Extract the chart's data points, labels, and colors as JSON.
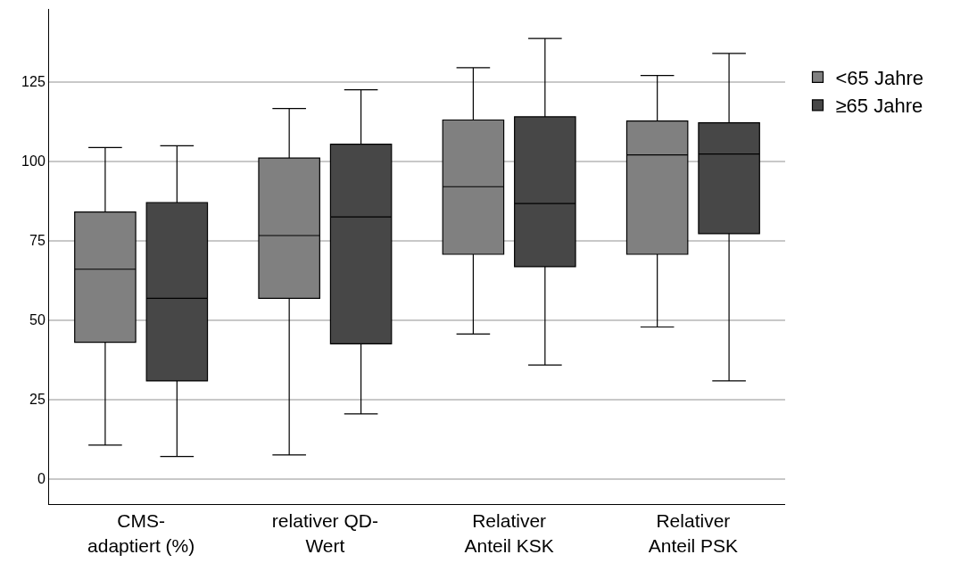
{
  "chart_data": {
    "type": "box",
    "categories": [
      "CMS-\nadaptiert (%)",
      "relativer QD-\nWert",
      "Relativer\nAnteil KSK",
      "Relativer\nAnteil PSK"
    ],
    "series": [
      {
        "name": "<65 Jahre",
        "color": "#808080",
        "boxes": [
          {
            "low": 10.6,
            "q1": 43,
            "median": 66,
            "q3": 84,
            "high": 104.3
          },
          {
            "low": 7.5,
            "q1": 56.8,
            "median": 76.6,
            "q3": 101,
            "high": 116.6
          },
          {
            "low": 45.6,
            "q1": 70.7,
            "median": 92,
            "q3": 113,
            "high": 129.5
          },
          {
            "low": 47.8,
            "q1": 70.7,
            "median": 102,
            "q3": 112.7,
            "high": 127
          }
        ]
      },
      {
        "name": "≥65 Jahre",
        "color": "#474747",
        "boxes": [
          {
            "low": 7,
            "q1": 30.8,
            "median": 56.8,
            "q3": 87,
            "high": 104.9
          },
          {
            "low": 20.4,
            "q1": 42.5,
            "median": 82.5,
            "q3": 105.4,
            "high": 122.5
          },
          {
            "low": 35.8,
            "q1": 66.8,
            "median": 86.7,
            "q3": 114,
            "high": 138.7
          },
          {
            "low": 30.8,
            "q1": 77.2,
            "median": 102.3,
            "q3": 112.1,
            "high": 134
          }
        ]
      }
    ],
    "ylim": [
      -8,
      148
    ],
    "yticks": [
      0,
      25,
      50,
      75,
      100,
      125
    ],
    "grid": "y",
    "legend": "right"
  }
}
